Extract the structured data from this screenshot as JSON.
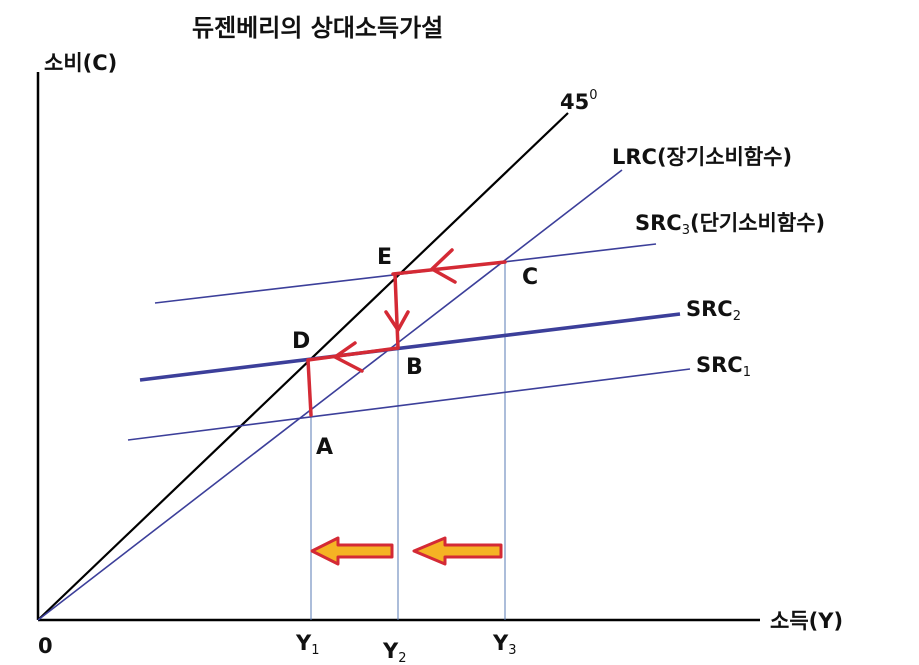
{
  "title": "듀젠베리의 상대소득가설",
  "axes": {
    "y_label": "소비(C)",
    "x_label": "소득(Y)",
    "origin_label": "0"
  },
  "lines": {
    "line45": {
      "label": "45",
      "superscript": "0"
    },
    "lrc": {
      "label": "LRC(장기소비함수)"
    },
    "src3": {
      "label": "SRC",
      "sub": "3",
      "suffix": "(단기소비함수)"
    },
    "src2": {
      "label": "SRC",
      "sub": "2"
    },
    "src1": {
      "label": "SRC",
      "sub": "1"
    }
  },
  "points": {
    "A": "A",
    "B": "B",
    "C": "C",
    "D": "D",
    "E": "E"
  },
  "ticks": {
    "y1": {
      "label": "Y",
      "sub": "1"
    },
    "y2": {
      "label": "Y",
      "sub": "2"
    },
    "y3": {
      "label": "Y",
      "sub": "3"
    }
  },
  "colors": {
    "line45": "#000000",
    "function_lines": "#3c3f9a",
    "path": "#d42a35",
    "arrow_fill": "#f5b324",
    "guide": "#5a7bb5"
  }
}
